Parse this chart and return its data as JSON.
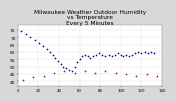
{
  "title": "Milwaukee Weather Outdoor Humidity\nvs Temperature\nEvery 5 Minutes",
  "title_fontsize": 4.2,
  "background_color": "#d8d8d8",
  "plot_bg_color": "#ffffff",
  "grid_color": "#b0b0b0",
  "blue_color": "#0000cc",
  "red_color": "#cc0000",
  "ylim": [
    37,
    78
  ],
  "yticks": [
    40,
    45,
    50,
    55,
    60,
    65,
    70,
    75
  ],
  "ylabel_fontsize": 3.2,
  "xlabel_fontsize": 2.8,
  "blue_x": [
    3,
    8,
    12,
    17,
    21,
    24,
    28,
    31,
    34,
    36,
    39,
    42,
    44,
    47,
    50,
    53,
    55,
    57,
    60,
    62,
    65,
    68,
    70,
    73,
    76,
    79,
    82,
    85,
    88,
    91,
    94,
    97,
    100,
    102,
    105,
    108,
    111,
    114,
    117,
    120,
    123,
    126,
    129,
    132
  ],
  "blue_y": [
    74,
    72,
    70,
    68,
    66,
    64,
    62,
    60,
    58,
    56,
    54,
    52,
    50,
    49,
    48,
    47,
    50,
    53,
    55,
    57,
    58,
    57,
    56,
    57,
    58,
    59,
    58,
    57,
    58,
    57,
    58,
    59,
    58,
    57,
    58,
    57,
    58,
    59,
    60,
    59,
    60,
    59,
    60,
    59
  ],
  "red_x": [
    5,
    15,
    25,
    35,
    45,
    55,
    65,
    75,
    85,
    95,
    105,
    115,
    125,
    135
  ],
  "red_y": [
    41,
    43,
    44,
    46,
    47,
    46,
    47,
    46,
    47,
    46,
    45,
    44,
    45,
    44
  ],
  "marker_size": 1.5,
  "xlim": [
    0,
    140
  ],
  "xtick_step": 20
}
